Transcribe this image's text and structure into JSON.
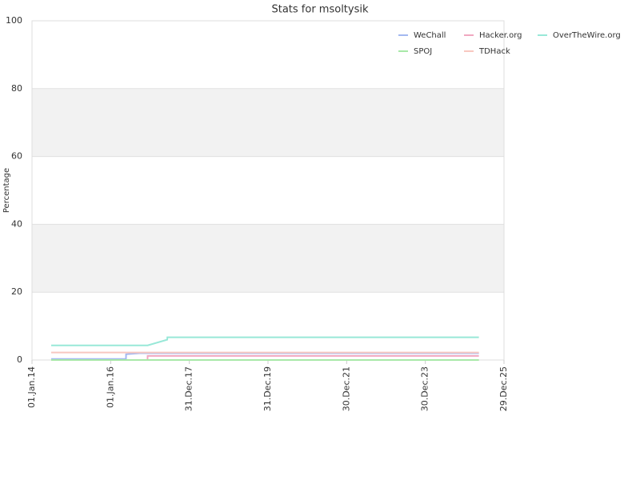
{
  "chart_data": {
    "type": "line",
    "title": "Stats for msoltysik",
    "y_label": "Percentage",
    "x": [
      "2014-06-28",
      "2016-05-22",
      "2016-05-23",
      "2016-09-25",
      "2016-12-08",
      "2016-12-09",
      "2017-06-09",
      "2017-06-10",
      "2025-05-10"
    ],
    "series": [
      {
        "name": "WeChall",
        "color": "#a3b8f0",
        "values": [
          0.3,
          0.3,
          1.7,
          2.0,
          2.0,
          2.0,
          2.0,
          2.0,
          2.0
        ]
      },
      {
        "name": "Hacker.org",
        "color": "#f0a8c0",
        "values": [
          0,
          0,
          0,
          0,
          0,
          1.2,
          1.2,
          1.2,
          1.2
        ]
      },
      {
        "name": "OverTheWire.org",
        "color": "#98e8d8",
        "values": [
          4.3,
          4.3,
          4.3,
          4.3,
          4.3,
          4.3,
          6,
          6.7,
          6.7
        ]
      },
      {
        "name": "SPOJ",
        "color": "#a8e8a8",
        "values": [
          0,
          0,
          0,
          0,
          0,
          0,
          0,
          0,
          0
        ]
      },
      {
        "name": "TDHack",
        "color": "#f8c8c0",
        "values": [
          2.2,
          2.2,
          2.2,
          2.2,
          2.2,
          2.2,
          2.2,
          2.2,
          2.2
        ]
      }
    ],
    "xlim": [
      "2014-01-01",
      "2025-12-29"
    ],
    "xticks": [
      {
        "value": "2014-01-01",
        "label": "01.Jan.14"
      },
      {
        "value": "2016-01-01",
        "label": "01.Jan.16"
      },
      {
        "value": "2017-12-31",
        "label": "31.Dec.17"
      },
      {
        "value": "2019-12-31",
        "label": "31.Dec.19"
      },
      {
        "value": "2021-12-30",
        "label": "30.Dec.21"
      },
      {
        "value": "2023-12-30",
        "label": "30.Dec.23"
      },
      {
        "value": "2025-12-29",
        "label": "29.Dec.25"
      }
    ],
    "ylim": [
      0,
      100
    ],
    "yticks": [
      0,
      20,
      40,
      60,
      80,
      100
    ],
    "grid": true
  }
}
